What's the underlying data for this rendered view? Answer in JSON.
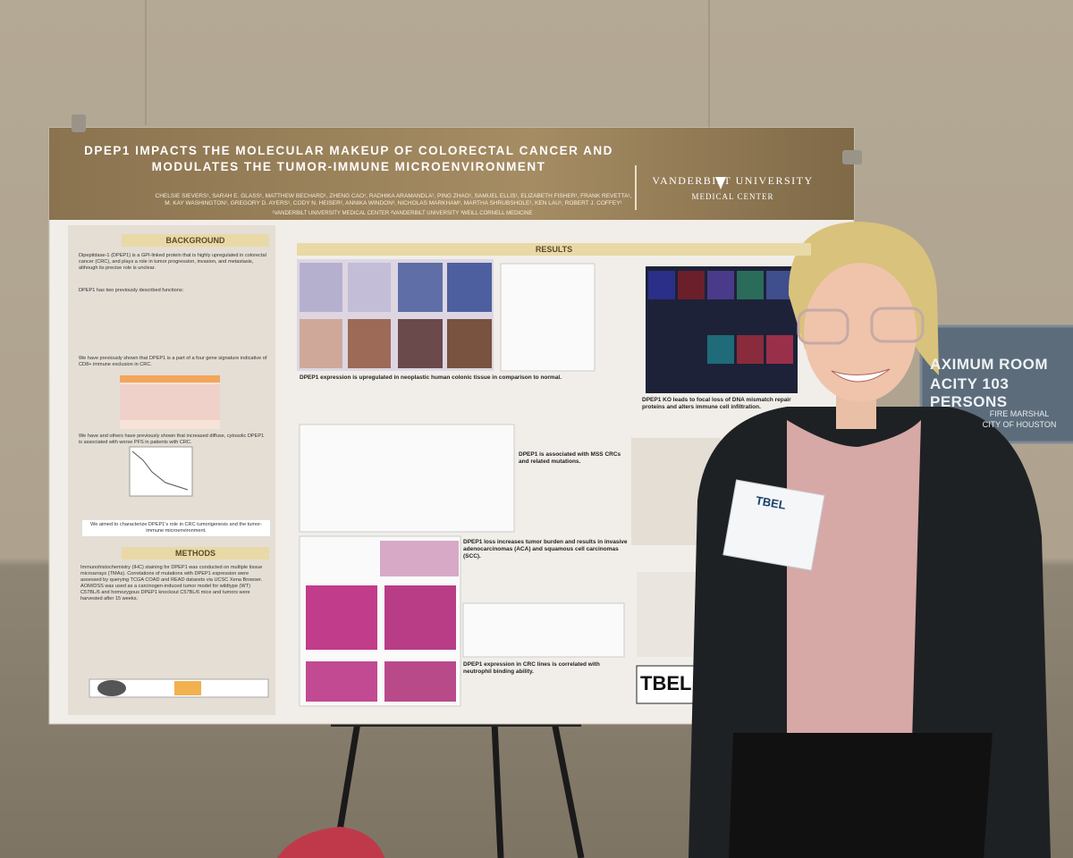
{
  "poster": {
    "title": "DPEP1 IMPACTS THE MOLECULAR MAKEUP OF COLORECTAL CANCER AND MODULATES THE TUMOR-IMMUNE MICROENVIRONMENT",
    "authors": "CHELSIE SIEVERS¹, SARAH E. GLASS¹, MATTHEW BECHARD¹, ZHENG CAO¹, RADHIKA ARAMANDLA¹, PING ZHAO¹, SAMUEL ELLIS¹, ELIZABETH FISHER¹, FRANK REVETTA¹, M. KAY WASHINGTON¹, GREGORY D. AYERS¹, CODY N. HEISER², ANNIKA WINDON³, NICHOLAS MARKHAM¹, MARTHA SHRUBSHOLE¹, KEN LAU¹, ROBERT J. COFFEY¹",
    "affiliations": "¹VANDERBILT UNIVERSITY MEDICAL CENTER ²VANDERBILT UNIVERSITY ³WEILL CORNELL MEDICINE",
    "logo": {
      "name": "VANDERBILT UNIVERSITY",
      "subtitle": "MEDICAL CENTER"
    },
    "background": {
      "heading": "BACKGROUND",
      "bullets": [
        "Dipeptidase-1 (DPEP1) is a GPI-linked protein that is highly upregulated in colorectal cancer (CRC), and plays a role in tumor progression, invasion, and metastasis, although its precise role is unclear.",
        "DPEP1 has two previously described functions:",
        "We have previously shown that DPEP1 is a part of a four gene signature indicative of CD8+ immune exclusion in CRC.",
        "We have and others have previously shown that increased diffuse, cytosolic DPEP1 is associated with worse PFS in patients with CRC."
      ],
      "aim": "We aimed to characterize DPEP1's role in CRC tumorigenesis and the tumor-immune microenvironment."
    },
    "methods": {
      "heading": "METHODS",
      "text": "Immunohistochemistry (IHC) staining for DPEP1 was conducted on multiple tissue microarrays (TMAs). Correlations of mutations with DPEP1 expression were assessed by querying TCGA COAD and READ datasets via UCSC Xena Browser. AOM/DSS was used as a carcinogen-induced tumor model for wildtype (WT) C57BL/6 and homozygous DPEP1 knockout C57BL/6 mice and tumors were harvested after 15 weeks."
    },
    "results": {
      "heading": "RESULTS",
      "panels": [
        {
          "title": "DPEP1 expression is upregulated in neoplastic human colonic tissue in comparison to normal."
        },
        {
          "title": "DPEP1 is associated with MSS CRCs and related mutations."
        },
        {
          "title": "DPEP1 loss increases tumor burden and results in invasive adenocarcinomas (ACA) and squamous cell carcinomas (SCC)."
        },
        {
          "title": "DPEP1 expression in CRC lines is correlated with neutrophil binding ability."
        },
        {
          "title": "DPEP1 KO leads to focal loss of DNA mismatch repair proteins and alters immune cell infiltration."
        }
      ]
    },
    "lab_logo": "TBEL"
  },
  "sign": {
    "lines": [
      "AXIMUM ROOM",
      "ACITY 103 PERSONS"
    ],
    "footer": [
      "FIRE MARSHAL",
      "CITY OF HOUSTON"
    ]
  },
  "badge": {
    "logo": "TBEL"
  }
}
